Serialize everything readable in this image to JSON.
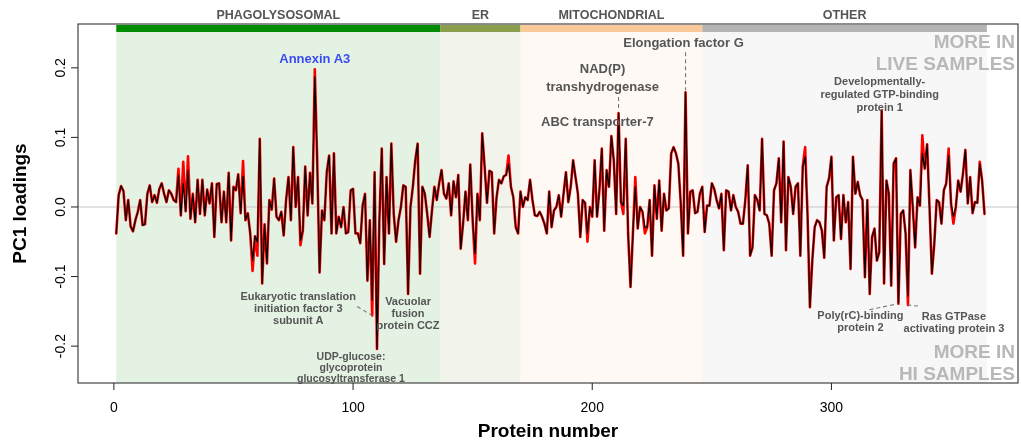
{
  "chart_data": {
    "type": "line",
    "xlabel": "Protein number",
    "ylabel": "PC1 loadings",
    "xlim": [
      -15,
      378
    ],
    "ylim": [
      -0.253,
      0.263
    ],
    "xticks": [
      0,
      100,
      200,
      300
    ],
    "yticks": [
      -0.2,
      -0.1,
      {
        "value": 0,
        "label": "0.0"
      },
      0.1,
      0.2
    ],
    "x": [
      1,
      2,
      3,
      4,
      5,
      6,
      7,
      8,
      9,
      10,
      11,
      12,
      13,
      14,
      15,
      16,
      17,
      18,
      19,
      20,
      21,
      22,
      23,
      24,
      25,
      26,
      27,
      28,
      29,
      30,
      31,
      32,
      33,
      34,
      35,
      36,
      37,
      38,
      39,
      40,
      41,
      42,
      43,
      44,
      45,
      46,
      47,
      48,
      49,
      50,
      51,
      52,
      53,
      54,
      55,
      56,
      57,
      58,
      59,
      60,
      61,
      62,
      63,
      64,
      65,
      66,
      67,
      68,
      69,
      70,
      71,
      72,
      73,
      74,
      75,
      76,
      77,
      78,
      79,
      80,
      81,
      82,
      83,
      84,
      85,
      86,
      87,
      88,
      89,
      90,
      91,
      92,
      93,
      94,
      95,
      96,
      97,
      98,
      99,
      100,
      101,
      102,
      103,
      104,
      105,
      106,
      107,
      108,
      109,
      110,
      111,
      112,
      113,
      114,
      115,
      116,
      117,
      118,
      119,
      120,
      121,
      122,
      123,
      124,
      125,
      126,
      127,
      128,
      129,
      130,
      131,
      132,
      133,
      134,
      135,
      136,
      137,
      138,
      139,
      140,
      141,
      142,
      143,
      144,
      145,
      146,
      147,
      148,
      149,
      150,
      151,
      152,
      153,
      154,
      155,
      156,
      157,
      158,
      159,
      160,
      161,
      162,
      163,
      164,
      165,
      166,
      167,
      168,
      169,
      170,
      171,
      172,
      173,
      174,
      175,
      176,
      177,
      178,
      179,
      180,
      181,
      182,
      183,
      184,
      185,
      186,
      187,
      188,
      189,
      190,
      191,
      192,
      193,
      194,
      195,
      196,
      197,
      198,
      199,
      200,
      201,
      202,
      203,
      204,
      205,
      206,
      207,
      208,
      209,
      210,
      211,
      212,
      213,
      214,
      215,
      216,
      217,
      218,
      219,
      220,
      221,
      222,
      223,
      224,
      225,
      226,
      227,
      228,
      229,
      230,
      231,
      232,
      233,
      234,
      235,
      236,
      237,
      238,
      239,
      240,
      241,
      242,
      243,
      244,
      245,
      246,
      247,
      248,
      249,
      250,
      251,
      252,
      253,
      254,
      255,
      256,
      257,
      258,
      259,
      260,
      261,
      262,
      263,
      264,
      265,
      266,
      267,
      268,
      269,
      270,
      271,
      272,
      273,
      274,
      275,
      276,
      277,
      278,
      279,
      280,
      281,
      282,
      283,
      284,
      285,
      286,
      287,
      288,
      289,
      290,
      291,
      292,
      293,
      294,
      295,
      296,
      297,
      298,
      299,
      300,
      301,
      302,
      303,
      304,
      305,
      306,
      307,
      308,
      309,
      310,
      311,
      312,
      313,
      314,
      315,
      316,
      317,
      318,
      319,
      320,
      321,
      322,
      323,
      324,
      325,
      326,
      327,
      328,
      329,
      330,
      331,
      332,
      333,
      334,
      335,
      336,
      337,
      338,
      339,
      340,
      341,
      342,
      343,
      344,
      345,
      346,
      347,
      348,
      349,
      350,
      351,
      352,
      353,
      354,
      355,
      356,
      357,
      358,
      359,
      360,
      361,
      362,
      363,
      364
    ],
    "series": [
      {
        "color": "#ff0000",
        "values": [
          -0.038,
          0.017,
          0.03,
          0.023,
          -0.019,
          0.01,
          -0.028,
          -0.035,
          -0.019,
          -0.007,
          0.01,
          -0.026,
          -0.025,
          0.019,
          0.031,
          0.007,
          0.017,
          0.006,
          0.026,
          0.034,
          0.019,
          0.007,
          0.024,
          0.019,
          0.01,
          0.007,
          0.055,
          -0.012,
          0.065,
          -0.006,
          0.073,
          -0.017,
          0.019,
          -0.022,
          0.039,
          -0.01,
          0.039,
          -0.012,
          0.025,
          0.005,
          0.034,
          -0.043,
          0.033,
          0.034,
          -0.022,
          0.022,
          -0.022,
          0.049,
          -0.048,
          0.029,
          0.024,
          0.047,
          -0.009,
          0.066,
          -0.019,
          -0.009,
          -0.038,
          -0.092,
          -0.042,
          -0.07,
          0.098,
          -0.11,
          -0.025,
          -0.081,
          0.01,
          -0.004,
          0.041,
          -0.014,
          -0.019,
          -0.007,
          -0.041,
          0.01,
          0.043,
          -0.019,
          0.086,
          0.0,
          0.043,
          -0.055,
          -0.034,
          0.058,
          -0.012,
          0.049,
          0.005,
          0.198,
          0.067,
          -0.094,
          -0.005,
          -0.019,
          0.05,
          0.074,
          -0.038,
          0.077,
          -0.038,
          -0.014,
          -0.029,
          0.0,
          -0.038,
          -0.036,
          0.024,
          0.026,
          -0.038,
          -0.038,
          -0.052,
          0.002,
          0.019,
          -0.106,
          -0.019,
          -0.156,
          0.05,
          -0.204,
          -0.019,
          0.084,
          -0.082,
          0.043,
          -0.038,
          0.091,
          -0.01,
          -0.05,
          -0.019,
          0.0,
          0.031,
          0.029,
          -0.125,
          0.0,
          0.029,
          0.067,
          0.091,
          -0.096,
          0.029,
          0.019,
          -0.01,
          -0.043,
          -0.005,
          0.029,
          0.01,
          0.034,
          0.053,
          0.019,
          0.012,
          0.034,
          -0.012,
          0.037,
          0.014,
          0.046,
          -0.06,
          -0.024,
          0.022,
          -0.019,
          0.061,
          -0.019,
          -0.081,
          0.019,
          -0.019,
          0.106,
          0.058,
          0.006,
          0.052,
          0.05,
          -0.038,
          0.014,
          0.039,
          0.034,
          0.044,
          0.046,
          0.074,
          0.029,
          0.014,
          -0.029,
          -0.038,
          0.022,
          0.0,
          0.014,
          0.01,
          0.039,
          0.01,
          -0.012,
          -0.013,
          -0.007,
          -0.014,
          -0.024,
          -0.038,
          0.022,
          -0.029,
          -0.005,
          0.0,
          0.017,
          -0.014,
          0.019,
          0.05,
          0.007,
          0.029,
          0.067,
          0.043,
          0.019,
          -0.043,
          0.01,
          0.006,
          -0.05,
          0.0,
          -0.014,
          0.067,
          -0.014,
          0.024,
          0.084,
          -0.034,
          0.053,
          0.029,
          0.102,
          0.067,
          -0.01,
          0.135,
          0.007,
          -0.01,
          0.098,
          -0.038,
          -0.115,
          -0.038,
          0.043,
          -0.031,
          0.0,
          -0.007,
          -0.038,
          -0.029,
          0.01,
          -0.07,
          0.031,
          -0.017,
          0.038,
          -0.034,
          0.019,
          -0.005,
          -0.002,
          0.077,
          0.086,
          0.077,
          0.062,
          0.005,
          -0.07,
          0.165,
          -0.038,
          0.022,
          0.024,
          -0.009,
          -0.007,
          0.019,
          0.029,
          -0.036,
          0.002,
          0.002,
          0.034,
          0.026,
          0.01,
          -0.002,
          0.019,
          -0.062,
          0.024,
          0.022,
          -0.005,
          0.017,
          0.0,
          -0.007,
          -0.024,
          -0.024,
          0.01,
          0.06,
          -0.07,
          -0.058,
          0.017,
          0.01,
          -0.005,
          0.098,
          -0.01,
          -0.012,
          -0.024,
          -0.07,
          0.024,
          0.034,
          0.07,
          -0.022,
          0.094,
          -0.062,
          0.043,
          0.029,
          -0.01,
          0.029,
          0.034,
          -0.07,
          0.058,
          0.086,
          -0.01,
          -0.144,
          -0.077,
          -0.029,
          -0.019,
          -0.022,
          -0.034,
          -0.073,
          0.029,
          0.041,
          0.072,
          -0.048,
          0.014,
          0.017,
          -0.046,
          0.017,
          -0.022,
          0.007,
          -0.089,
          0.072,
          0.019,
          0.036,
          0.017,
          0.01,
          -0.101,
          0.01,
          -0.125,
          -0.043,
          -0.031,
          -0.077,
          -0.065,
          0.139,
          -0.11,
          0.038,
          0.019,
          -0.113,
          0.062,
          0.07,
          -0.139,
          -0.01,
          -0.005,
          -0.038,
          -0.141,
          0.053,
          0.0,
          -0.058,
          0.014,
          0.002,
          0.103,
          0.055,
          0.09,
          0.0,
          -0.096,
          -0.053,
          0.01,
          0.007,
          -0.024,
          0.024,
          0.034,
          0.084,
          0.005,
          -0.024,
          0.0,
          0.038,
          0.022,
          0.048,
          0.082,
          0.005,
          0.043,
          -0.009,
          0.007,
          0.006,
          0.065,
          0.038,
          -0.01
        ]
      },
      {
        "color": "#000000",
        "values": [
          -0.038,
          0.017,
          0.03,
          0.023,
          -0.019,
          0.01,
          -0.028,
          -0.035,
          -0.019,
          -0.007,
          0.01,
          -0.026,
          -0.025,
          0.019,
          0.031,
          0.007,
          0.017,
          0.006,
          0.026,
          0.034,
          0.019,
          0.007,
          0.024,
          0.019,
          0.01,
          0.007,
          0.046,
          -0.012,
          0.034,
          -0.006,
          0.053,
          -0.017,
          0.019,
          -0.022,
          0.039,
          -0.01,
          0.039,
          -0.012,
          0.025,
          0.005,
          0.034,
          -0.043,
          0.033,
          0.034,
          -0.022,
          0.022,
          -0.022,
          0.049,
          -0.048,
          0.029,
          0.024,
          0.047,
          -0.009,
          0.044,
          -0.019,
          -0.009,
          -0.038,
          -0.077,
          -0.042,
          -0.05,
          0.098,
          -0.11,
          -0.025,
          -0.081,
          0.01,
          -0.004,
          0.041,
          -0.014,
          -0.019,
          -0.007,
          -0.041,
          0.01,
          0.043,
          -0.019,
          0.086,
          0.0,
          0.043,
          -0.048,
          -0.034,
          0.058,
          -0.012,
          0.049,
          0.005,
          0.187,
          0.067,
          -0.094,
          -0.005,
          -0.019,
          0.05,
          0.074,
          -0.038,
          0.077,
          -0.038,
          -0.014,
          -0.029,
          0.0,
          -0.038,
          -0.036,
          0.024,
          0.026,
          -0.038,
          -0.038,
          -0.052,
          0.002,
          0.019,
          -0.106,
          -0.019,
          -0.134,
          0.05,
          -0.204,
          -0.019,
          0.084,
          -0.082,
          0.043,
          -0.038,
          0.091,
          -0.01,
          -0.05,
          -0.019,
          0.0,
          0.031,
          0.029,
          -0.125,
          0.0,
          0.029,
          0.067,
          0.091,
          -0.096,
          0.029,
          0.019,
          -0.01,
          -0.043,
          -0.005,
          0.029,
          0.01,
          0.034,
          0.053,
          0.019,
          0.012,
          0.034,
          -0.012,
          0.037,
          0.014,
          0.046,
          -0.06,
          -0.024,
          0.022,
          -0.019,
          0.061,
          -0.019,
          -0.067,
          0.019,
          -0.019,
          0.106,
          0.058,
          0.006,
          0.052,
          0.05,
          -0.038,
          0.014,
          0.039,
          0.034,
          0.044,
          0.046,
          0.062,
          0.029,
          0.014,
          -0.029,
          -0.038,
          0.022,
          0.0,
          0.014,
          0.01,
          0.039,
          0.01,
          -0.012,
          -0.013,
          -0.007,
          -0.014,
          -0.024,
          -0.038,
          0.022,
          -0.029,
          -0.005,
          0.0,
          0.017,
          -0.014,
          0.019,
          0.05,
          0.007,
          0.029,
          0.067,
          0.043,
          0.019,
          -0.043,
          0.01,
          0.006,
          -0.038,
          0.0,
          -0.014,
          0.067,
          -0.014,
          0.024,
          0.084,
          -0.034,
          0.053,
          0.029,
          0.102,
          0.067,
          -0.01,
          0.135,
          0.007,
          0.002,
          0.098,
          -0.038,
          -0.115,
          -0.038,
          0.029,
          -0.031,
          0.0,
          -0.007,
          -0.029,
          -0.029,
          0.01,
          -0.07,
          0.031,
          -0.017,
          0.038,
          -0.034,
          0.019,
          -0.005,
          -0.002,
          0.077,
          0.086,
          0.077,
          0.062,
          0.005,
          -0.07,
          0.165,
          -0.038,
          0.022,
          0.024,
          -0.009,
          -0.007,
          0.019,
          0.029,
          -0.036,
          0.002,
          0.002,
          0.034,
          0.026,
          0.01,
          -0.002,
          0.019,
          -0.062,
          0.024,
          0.022,
          -0.005,
          0.017,
          0.0,
          -0.007,
          -0.024,
          -0.024,
          0.01,
          0.06,
          -0.07,
          -0.058,
          0.017,
          0.01,
          -0.005,
          0.098,
          -0.01,
          -0.012,
          -0.024,
          -0.07,
          0.024,
          0.034,
          0.07,
          -0.022,
          0.094,
          -0.062,
          0.043,
          0.029,
          -0.01,
          0.029,
          0.034,
          -0.07,
          0.058,
          0.072,
          -0.01,
          -0.144,
          -0.077,
          -0.029,
          -0.019,
          -0.022,
          -0.034,
          -0.073,
          0.029,
          0.041,
          0.072,
          -0.048,
          0.014,
          0.017,
          -0.046,
          0.017,
          -0.022,
          0.007,
          -0.089,
          0.072,
          0.019,
          0.036,
          0.017,
          0.01,
          -0.101,
          0.01,
          -0.125,
          -0.043,
          -0.031,
          -0.077,
          -0.065,
          0.139,
          -0.11,
          0.038,
          0.019,
          -0.113,
          0.062,
          0.07,
          -0.139,
          -0.01,
          -0.005,
          -0.038,
          -0.128,
          0.053,
          0.0,
          -0.058,
          0.014,
          0.002,
          0.077,
          0.055,
          0.09,
          0.0,
          -0.096,
          -0.053,
          0.01,
          0.007,
          -0.024,
          0.024,
          0.034,
          0.074,
          0.005,
          -0.014,
          0.0,
          0.038,
          0.022,
          0.048,
          0.082,
          0.005,
          0.043,
          -0.009,
          0.007,
          0.006,
          0.062,
          0.038,
          -0.01
        ]
      }
    ],
    "ref_lines": [
      {
        "axis": "y",
        "value": 0,
        "color": "#c8c8c8"
      }
    ],
    "bands": [
      {
        "axis": "x",
        "from": 1,
        "to": 136.5,
        "label": "PHAGOLYSOSOMAL",
        "color": "#008c00"
      },
      {
        "axis": "x",
        "from": 136.5,
        "to": 170,
        "label": "ER",
        "color": "#8a9e4e"
      },
      {
        "axis": "x",
        "from": 170,
        "to": 246,
        "label": "MITOCHONDRIAL",
        "color": "#f9c99a"
      },
      {
        "axis": "x",
        "from": 246,
        "to": 365,
        "label": "OTHER",
        "color": "#b4b4b4"
      }
    ],
    "annotations": [
      {
        "text": "Annexin A3",
        "x": 84,
        "y": 0.198
      },
      {
        "text": "NAD(P)\ntranshydrogenase",
        "x": 211,
        "y": 0.135
      },
      {
        "text": "ABC transporter-7",
        "x": 208,
        "y": 0.102
      },
      {
        "text": "Elongation factor G",
        "x": 239,
        "y": 0.165
      },
      {
        "text": "Developmentally-\nregulated GTP-binding\nprotein 1",
        "x": 321,
        "y": 0.139
      },
      {
        "text": "Eukaryotic translation\ninitiation factor 3\nsubunit A",
        "x": 108,
        "y": -0.156
      },
      {
        "text": "UDP-glucose:\nglycoprotein\nglucosyltransferase 1",
        "x": 110,
        "y": -0.204
      },
      {
        "text": "Vacuolar\nfusion\nprotein CCZ",
        "x": 123,
        "y": -0.125
      },
      {
        "text": "Poly(rC)-binding\nprotein 2",
        "x": 328,
        "y": -0.139
      },
      {
        "text": "Ras GTPase\nactivating protein 3",
        "x": 332,
        "y": -0.141
      },
      "MORE IN\nLIVE SAMPLES",
      "MORE IN\nHI SAMPLES"
    ]
  }
}
